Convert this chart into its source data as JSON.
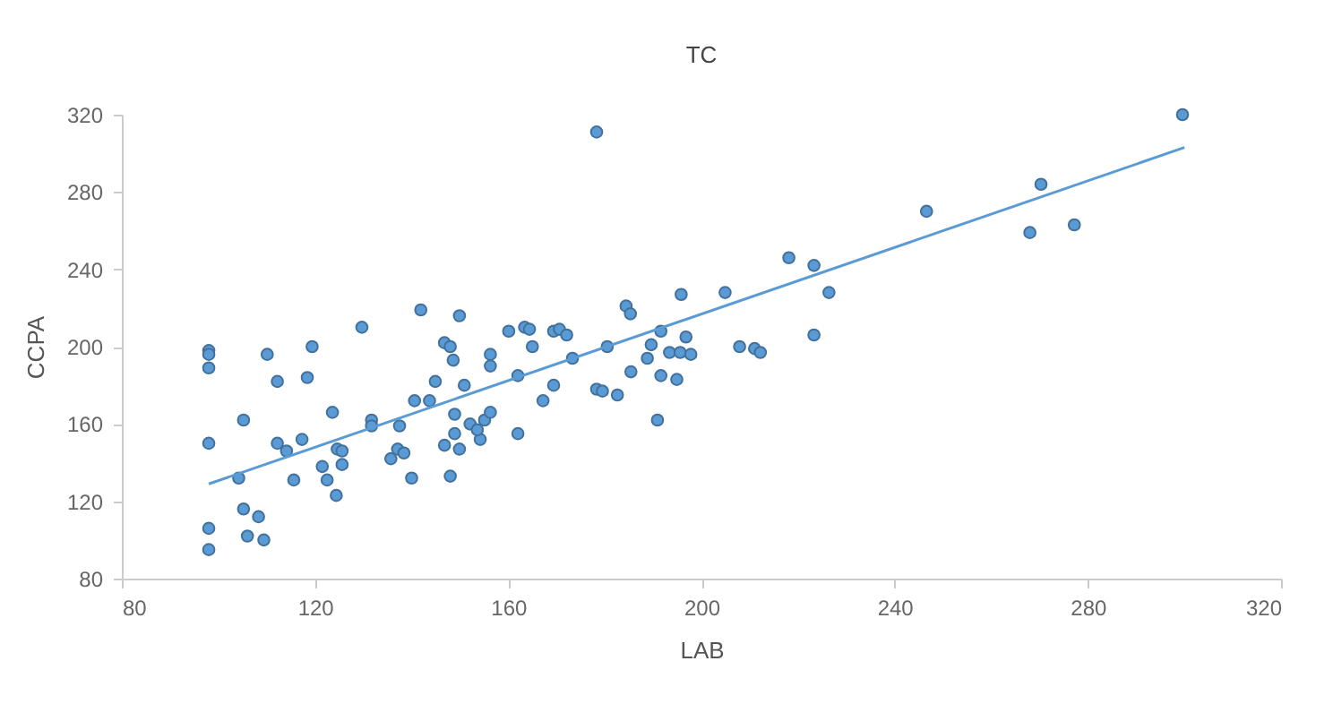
{
  "chart_data": {
    "type": "scatter",
    "title": "TC",
    "xlabel": "LAB",
    "ylabel": "CCPA",
    "xlim": [
      80,
      320
    ],
    "ylim": [
      80,
      320
    ],
    "xticks": [
      80,
      120,
      160,
      200,
      240,
      280,
      320
    ],
    "yticks": [
      80,
      120,
      160,
      200,
      240,
      280,
      320
    ],
    "grid": false,
    "series": [
      {
        "color": "#5b9bd5",
        "marker": "circle",
        "x": [
          98,
          98,
          98,
          98,
          98,
          98,
          104.2,
          105.2,
          105.2,
          108.3,
          106,
          109.4,
          110.1,
          112.2,
          119.4,
          118.4,
          129.7,
          112.2,
          114.1,
          117.3,
          115.6,
          123.6,
          121.5,
          122.5,
          124.4,
          124.6,
          125.6,
          125.6,
          131.7,
          131.7,
          137.5,
          135.7,
          137.1,
          138.4,
          140,
          141.9,
          149.9,
          146.8,
          148,
          148.6,
          144.9,
          140.6,
          143.7,
          150.9,
          148,
          146.8,
          149.9,
          148.9,
          148.9,
          152.1,
          154.2,
          153.6,
          155.1,
          156.3,
          156.3,
          156.3,
          162,
          162,
          160.1,
          163.4,
          164.4,
          165,
          167.2,
          169.4,
          169.4,
          170.6,
          172.1,
          173.3,
          180.5,
          178.3,
          179.5,
          182.6,
          184.4,
          185.3,
          185.4,
          188.8,
          189.6,
          191.6,
          191.6,
          190.9,
          194.9,
          193.4,
          195.6,
          196.8,
          197.8,
          195.8,
          204.9,
          207.9,
          211,
          212.2,
          246.6,
          218.1,
          223.3,
          226.4,
          223.3,
          299.6,
          270.3,
          268,
          277.2,
          178.3
        ],
        "values": [
          198,
          196,
          189,
          150,
          106,
          95,
          132,
          162,
          116,
          112,
          102,
          100,
          196,
          182,
          200,
          184,
          210,
          150,
          146,
          152,
          131,
          166,
          138,
          131,
          123,
          147,
          146,
          139,
          162,
          159,
          159,
          142,
          147,
          145,
          132,
          219,
          216,
          202,
          200,
          193,
          182,
          172,
          172,
          180,
          133,
          149,
          147,
          155,
          165,
          160,
          152,
          157,
          162,
          166,
          196,
          190,
          185,
          155,
          208,
          210,
          209,
          200,
          172,
          180,
          208,
          209,
          206,
          194,
          200,
          178,
          177,
          175,
          221,
          217,
          187,
          194,
          201,
          208,
          185,
          162,
          183,
          197,
          197,
          205,
          196,
          227,
          228,
          200,
          199,
          197,
          270,
          246,
          242,
          228,
          206,
          320,
          284,
          259,
          263,
          311
        ]
      },
      {
        "type": "line",
        "color": "#5b9bd5",
        "line_style": "solid",
        "x": [
          98,
          300
        ],
        "values": [
          129,
          303
        ]
      }
    ]
  }
}
